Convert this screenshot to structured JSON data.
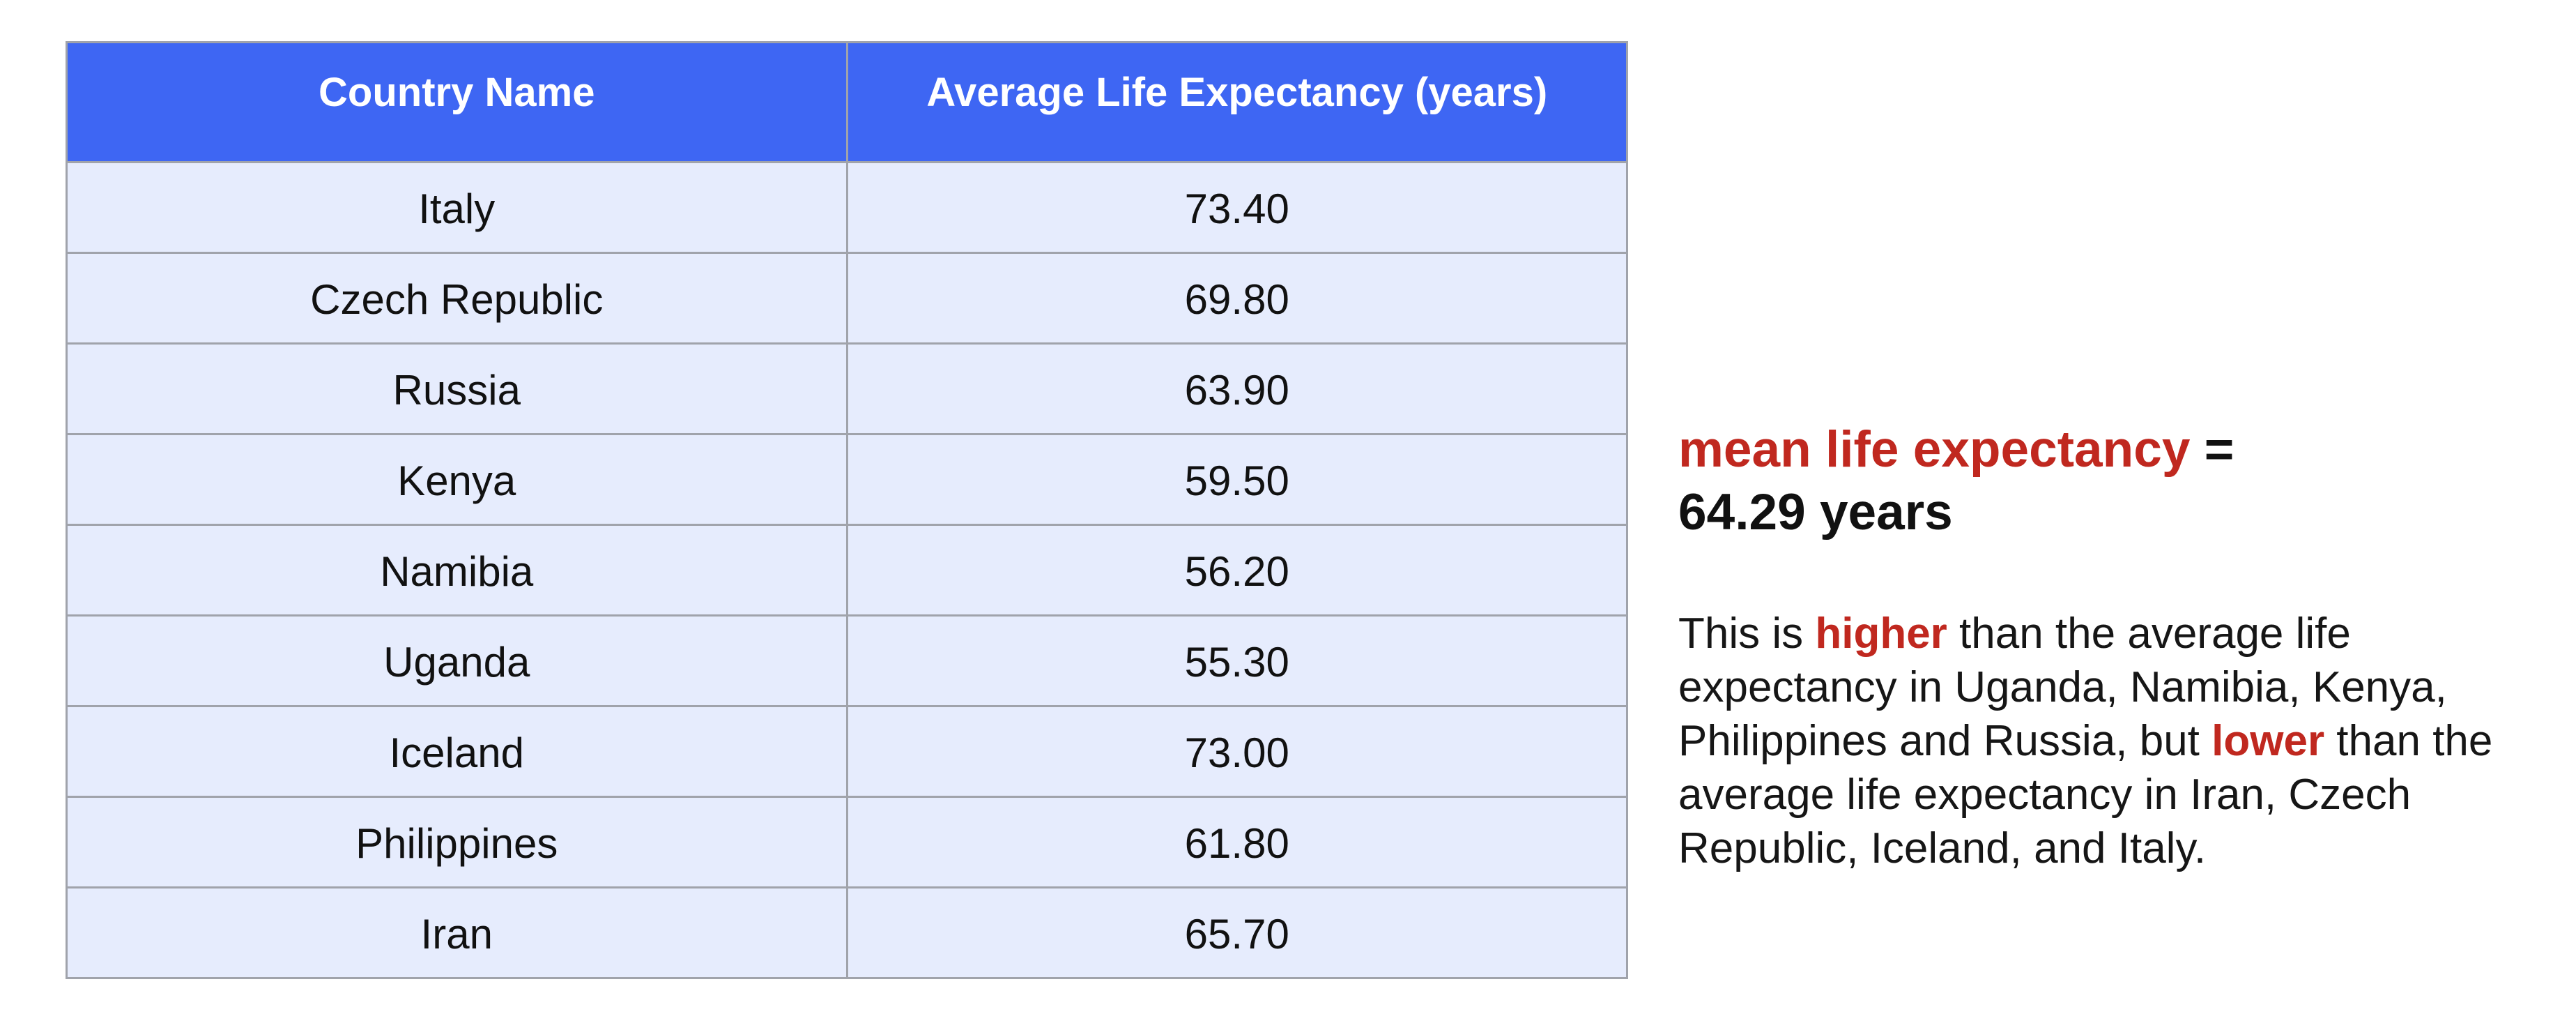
{
  "table": {
    "headers": [
      "Country Name",
      "Average Life Expectancy (years)"
    ],
    "rows": [
      [
        "Italy",
        "73.40"
      ],
      [
        "Czech Republic",
        "69.80"
      ],
      [
        "Russia",
        "63.90"
      ],
      [
        "Kenya",
        "59.50"
      ],
      [
        "Namibia",
        "56.20"
      ],
      [
        "Uganda",
        "55.30"
      ],
      [
        "Iceland",
        "73.00"
      ],
      [
        "Philippines",
        "61.80"
      ],
      [
        "Iran",
        "65.70"
      ]
    ]
  },
  "summary": {
    "mean_label": "mean life expectancy",
    "equals": " =",
    "mean_value": "64.29 years",
    "desc_part1": "This is ",
    "higher_word": "higher",
    "desc_part2": " than the average life expectancy in Uganda, Namibia, Kenya, Philippines and Russia, but ",
    "lower_word": "lower",
    "desc_part3": " than the average life expectancy in Iran, Czech Republic, Iceland, and Italy."
  },
  "colors": {
    "header_bg": "#3e66f3",
    "row_bg": "#e6ecfd",
    "accent": "#c0281f"
  }
}
